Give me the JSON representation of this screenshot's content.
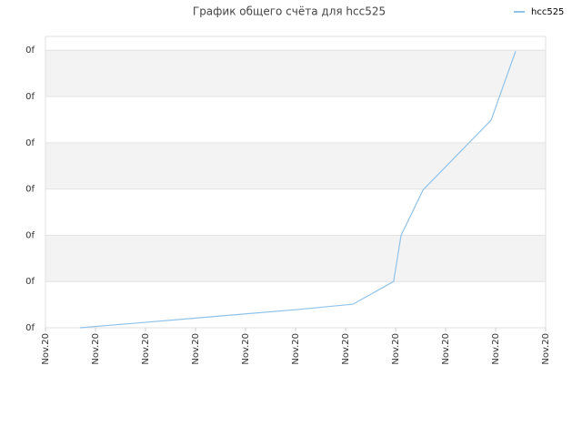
{
  "chart_data": {
    "type": "line",
    "title": "График общего счёта для hcc525",
    "x": [
      0.69,
      1.8,
      2.9,
      4.0,
      5.1,
      6.15,
      6.96,
      7.11,
      7.55,
      8.91,
      9.4
    ],
    "series": [
      {
        "name": "hcc525",
        "color": "#90c3ea",
        "values": [
          0,
          0.1,
          0.2,
          0.3,
          0.4,
          0.51,
          1.0,
          2.0,
          2.98,
          4.49,
          5.98
        ]
      }
    ],
    "xlim": [
      0,
      10
    ],
    "xticks": [
      {
        "value": 0,
        "label": "Nov.20"
      },
      {
        "value": 1,
        "label": "Nov.20"
      },
      {
        "value": 2,
        "label": "Nov.20"
      },
      {
        "value": 3,
        "label": "Nov.20"
      },
      {
        "value": 4,
        "label": "Nov.20"
      },
      {
        "value": 5,
        "label": "Nov.20"
      },
      {
        "value": 6,
        "label": "Nov.20"
      },
      {
        "value": 7,
        "label": "Nov.20"
      },
      {
        "value": 8,
        "label": "Nov.20"
      },
      {
        "value": 9,
        "label": "Nov.20"
      },
      {
        "value": 10,
        "label": "Nov.20"
      }
    ],
    "ylim": [
      0,
      6.3
    ],
    "yticks": [
      {
        "value": 0,
        "label": "0f"
      },
      {
        "value": 1,
        "label": "0f"
      },
      {
        "value": 2,
        "label": "0f"
      },
      {
        "value": 3,
        "label": "0f"
      },
      {
        "value": 4,
        "label": "0f"
      },
      {
        "value": 5,
        "label": "0f"
      },
      {
        "value": 6,
        "label": "0f"
      }
    ],
    "grid": true,
    "legend": "top-right"
  }
}
